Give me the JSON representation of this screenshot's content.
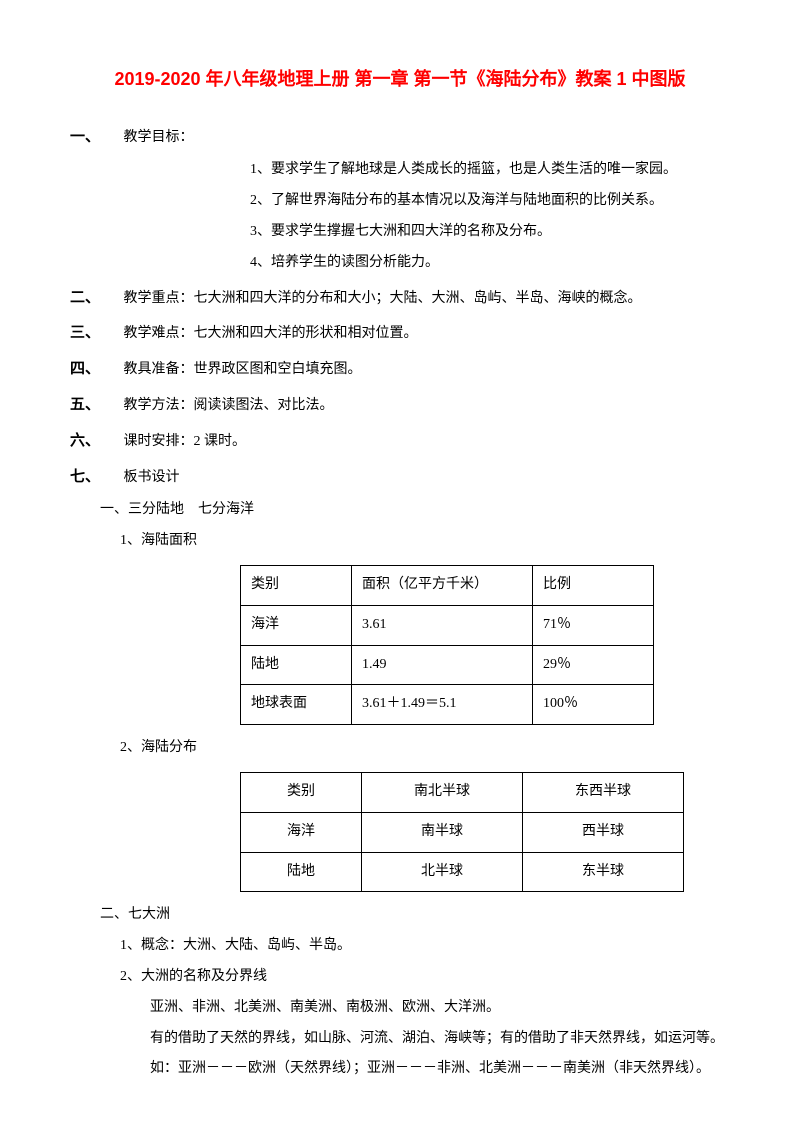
{
  "title": "2019-2020 年八年级地理上册 第一章 第一节《海陆分布》教案 1 中图版",
  "sections": {
    "s1": {
      "num": "一、",
      "label": "教学目标："
    },
    "s2": {
      "num": "二、",
      "label": "教学重点：七大洲和四大洋的分布和大小；大陆、大洲、岛屿、半岛、海峡的概念。"
    },
    "s3": {
      "num": "三、",
      "label": "教学难点：七大洲和四大洋的形状和相对位置。"
    },
    "s4": {
      "num": "四、",
      "label": "教具准备：世界政区图和空白填充图。"
    },
    "s5": {
      "num": "五、",
      "label": "教学方法：阅读读图法、对比法。"
    },
    "s6": {
      "num": "六、",
      "label": "课时安排：2 课时。"
    },
    "s7": {
      "num": "七、",
      "label": "板书设计"
    }
  },
  "goals": {
    "g1": "1、要求学生了解地球是人类成长的摇篮，也是人类生活的唯一家园。",
    "g2": "2、了解世界海陆分布的基本情况以及海洋与陆地面积的比例关系。",
    "g3": "3、要求学生撑握七大洲和四大洋的名称及分布。",
    "g4": "4、培养学生的读图分析能力。"
  },
  "part1": {
    "heading": "一、三分陆地　七分海洋",
    "item1": "1、海陆面积",
    "item2": "2、海陆分布"
  },
  "table1": {
    "h1": "类别",
    "h2": "面积（亿平方千米）",
    "h3": "比例",
    "r1c1": "海洋",
    "r1c2": "3.61",
    "r1c3": "71％",
    "r2c1": "陆地",
    "r2c2": "1.49",
    "r2c3": "29％",
    "r3c1": "地球表面",
    "r3c2": "3.61＋1.49＝5.1",
    "r3c3": "100％"
  },
  "table2": {
    "h1": "类别",
    "h2": "南北半球",
    "h3": "东西半球",
    "r1c1": "海洋",
    "r1c2": "南半球",
    "r1c3": "西半球",
    "r2c1": "陆地",
    "r2c2": "北半球",
    "r2c3": "东半球"
  },
  "part2": {
    "heading": "二、七大洲",
    "p1": "1、概念：大洲、大陆、岛屿、半岛。",
    "p2": "2、大洲的名称及分界线",
    "p2a": "亚洲、非洲、北美洲、南美洲、南极洲、欧洲、大洋洲。",
    "p2b": "有的借助了天然的界线，如山脉、河流、湖泊、海峡等；有的借助了非天然界线，如运河等。",
    "p2c": "如：亚洲－－－欧洲（天然界线）；亚洲－－－非洲、北美洲－－－南美洲（非天然界线）。"
  },
  "style": {
    "title_color": "#ff0000",
    "text_color": "#000000",
    "background_color": "#ffffff",
    "border_color": "#000000",
    "body_fontsize": 14,
    "title_fontsize": 18,
    "line_height": 2.2
  }
}
